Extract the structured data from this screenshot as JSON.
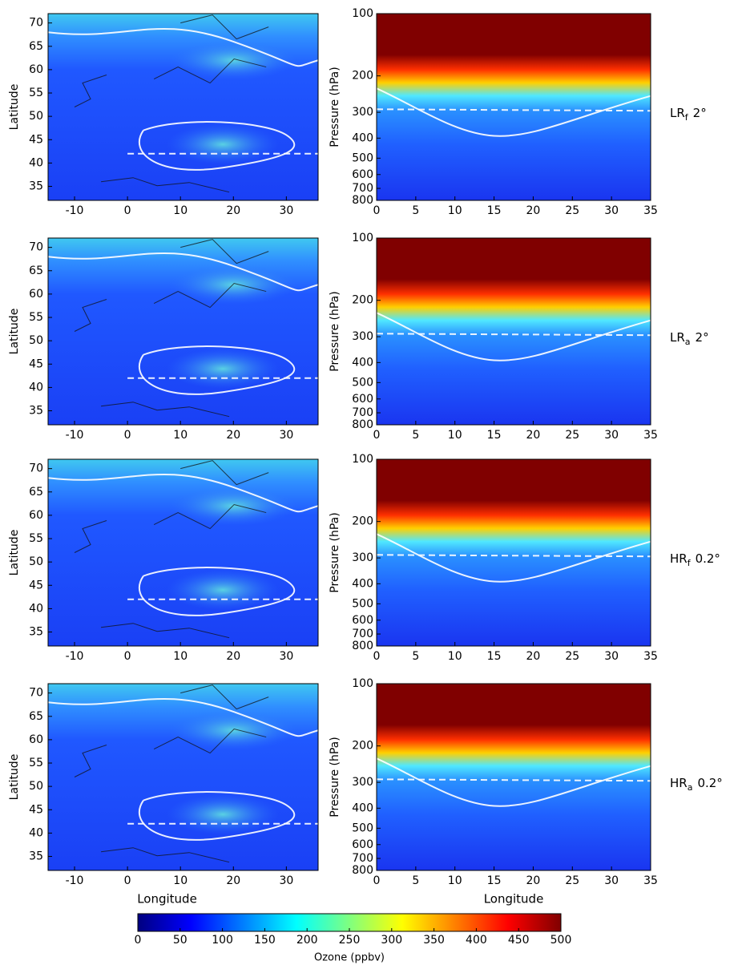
{
  "chart_data": [
    {
      "type": "map",
      "xlabel": "Longitude",
      "ylabel": "Latitude",
      "xlim": [
        -15,
        36
      ],
      "ylim": [
        32,
        72
      ],
      "xticks": [
        -10,
        0,
        10,
        20,
        30
      ],
      "yticks": [
        35,
        40,
        45,
        50,
        55,
        60,
        65,
        70
      ]
    },
    {
      "type": "profile",
      "xlabel": "Longitude",
      "ylabel": "Pressure (hPa)",
      "xlim": [
        0,
        35
      ],
      "ylim": [
        800,
        100
      ],
      "log_scale": true,
      "xticks": [
        0,
        5,
        10,
        15,
        20,
        25,
        30,
        35
      ],
      "yticks": [
        100,
        200,
        300,
        400,
        500,
        600,
        700,
        800
      ]
    },
    {
      "type": "colorbar",
      "xlabel": "Ozone (ppbv)",
      "xlim": [
        0,
        500
      ],
      "colormap": "jet",
      "xticks": [
        0,
        50,
        100,
        150,
        200,
        250,
        300,
        350,
        400,
        450,
        500
      ]
    }
  ],
  "panels": [
    {
      "name": "LR",
      "subscript": "f",
      "resolution": "2°"
    },
    {
      "name": "LR",
      "subscript": "a",
      "resolution": "2°"
    },
    {
      "name": "HR",
      "subscript": "f",
      "resolution": "0.2°"
    },
    {
      "name": "HR",
      "subscript": "a",
      "resolution": "0.2°"
    }
  ]
}
